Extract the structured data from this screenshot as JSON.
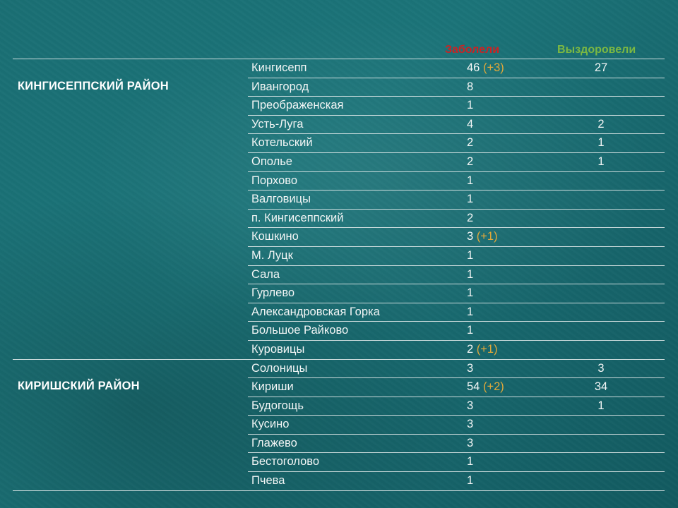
{
  "headers": {
    "sick": "Заболели",
    "recovered": "Выздоровели"
  },
  "districts": [
    {
      "name": "КИНГИСЕППСКИЙ РАЙОН",
      "rows": [
        {
          "place": "Кингисепп",
          "sick": "46",
          "delta": "(+3)",
          "recovered": "27"
        },
        {
          "place": "Ивангород",
          "sick": "8",
          "delta": "",
          "recovered": ""
        },
        {
          "place": "Преображенская",
          "sick": "1",
          "delta": "",
          "recovered": ""
        },
        {
          "place": "Усть-Луга",
          "sick": "4",
          "delta": "",
          "recovered": "2"
        },
        {
          "place": "Котельский",
          "sick": "2",
          "delta": "",
          "recovered": "1"
        },
        {
          "place": "Ополье",
          "sick": "2",
          "delta": "",
          "recovered": "1"
        },
        {
          "place": "Порхово",
          "sick": "1",
          "delta": "",
          "recovered": ""
        },
        {
          "place": "Валговицы",
          "sick": "1",
          "delta": "",
          "recovered": ""
        },
        {
          "place": "п. Кингисеппский",
          "sick": "2",
          "delta": "",
          "recovered": ""
        },
        {
          "place": "Кошкино",
          "sick": "3",
          "delta": "(+1)",
          "recovered": ""
        },
        {
          "place": "М. Луцк",
          "sick": "1",
          "delta": "",
          "recovered": ""
        },
        {
          "place": "Сала",
          "sick": "1",
          "delta": "",
          "recovered": ""
        },
        {
          "place": "Гурлево",
          "sick": "1",
          "delta": "",
          "recovered": ""
        },
        {
          "place": "Александровская Горка",
          "sick": "1",
          "delta": "",
          "recovered": ""
        },
        {
          "place": "Большое Райково",
          "sick": "1",
          "delta": "",
          "recovered": ""
        },
        {
          "place": "Куровицы",
          "sick": "2",
          "delta": "(+1)",
          "recovered": ""
        }
      ]
    },
    {
      "name": "КИРИШСКИЙ РАЙОН",
      "rows": [
        {
          "place": "Солоницы",
          "sick": "3",
          "delta": "",
          "recovered": "3"
        },
        {
          "place": "Кириши",
          "sick": "54",
          "delta": "(+2)",
          "recovered": "34"
        },
        {
          "place": "Будогощь",
          "sick": "3",
          "delta": "",
          "recovered": "1"
        },
        {
          "place": "Кусино",
          "sick": "3",
          "delta": "",
          "recovered": ""
        },
        {
          "place": "Глажево",
          "sick": "3",
          "delta": "",
          "recovered": ""
        },
        {
          "place": "Бестоголово",
          "sick": "1",
          "delta": "",
          "recovered": ""
        },
        {
          "place": "Пчева",
          "sick": "1",
          "delta": "",
          "recovered": ""
        }
      ]
    }
  ]
}
